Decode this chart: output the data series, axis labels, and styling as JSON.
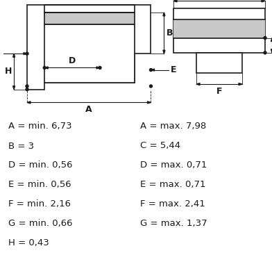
{
  "bg_color": "#ffffff",
  "line_color": "#1a1a1a",
  "gray_fill": "#c8c8c8",
  "fontsize_labels": 9.5,
  "fontsize_dim": 9,
  "left_labels": [
    "A = min. 6,73",
    "B = 3",
    "D = min. 0,56",
    "E = min. 0,56",
    "F = min. 2,16",
    "G = min. 0,66",
    "H = 0,43"
  ],
  "right_labels": [
    "A = max. 7,98",
    "C = 5,44",
    "D = max. 0,71",
    "E = max. 0,71",
    "F = max. 2,41",
    "G = max. 1,37"
  ]
}
